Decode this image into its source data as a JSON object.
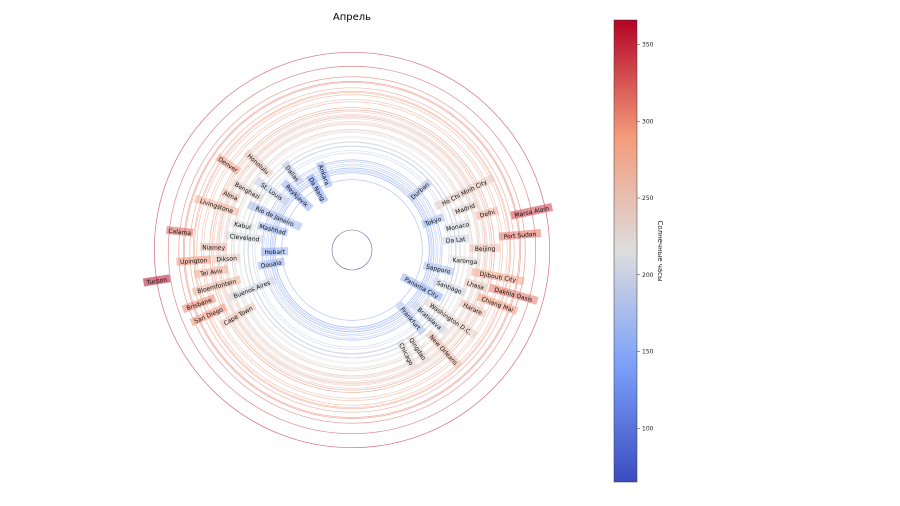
{
  "chart_data": {
    "type": "polar-bubble",
    "title": "Апрель",
    "colorbar": {
      "label": "Солнечные часы",
      "range": [
        65,
        366
      ],
      "ticks": [
        100,
        150,
        200,
        250,
        300,
        350
      ],
      "colormap": [
        "#3b4cc0",
        "#7b9ff9",
        "#dddddd",
        "#f49a7b",
        "#b40426"
      ]
    },
    "theta_unit": "degrees clockwise from top",
    "cities": [
      {
        "name": "Durban",
        "theta": 49,
        "value": 177
      },
      {
        "name": "Ho Chi Minh City",
        "theta": 63,
        "value": 239
      },
      {
        "name": "Tokyo",
        "theta": 69,
        "value": 170
      },
      {
        "name": "Monaco",
        "theta": 70,
        "value": 208
      },
      {
        "name": "Delhi",
        "theta": 75,
        "value": 263
      },
      {
        "name": "Madrid",
        "theta": 76,
        "value": 229
      },
      {
        "name": "Marsa Alam",
        "theta": 78,
        "value": 338
      },
      {
        "name": "Da Lat",
        "theta": 83,
        "value": 201
      },
      {
        "name": "Beijing",
        "theta": 85,
        "value": 251
      },
      {
        "name": "Karonga",
        "theta": 88,
        "value": 217
      },
      {
        "name": "Port Sudan",
        "theta": 88,
        "value": 312
      },
      {
        "name": "Sapporo",
        "theta": 89,
        "value": 174
      },
      {
        "name": "Djibouti City",
        "theta": 90,
        "value": 277
      },
      {
        "name": "Lhasa",
        "theta": 94,
        "value": 243
      },
      {
        "name": "Santiago",
        "theta": 96,
        "value": 201
      },
      {
        "name": "Panama City",
        "theta": 99,
        "value": 158
      },
      {
        "name": "Washington D.C.",
        "theta": 101,
        "value": 229
      },
      {
        "name": "Dakhla Oasis",
        "theta": 104,
        "value": 310
      },
      {
        "name": "Bratislava",
        "theta": 106,
        "value": 200
      },
      {
        "name": "Frankfurt",
        "theta": 108,
        "value": 177
      },
      {
        "name": "Harare",
        "theta": 110,
        "value": 253
      },
      {
        "name": "Chiang Mai",
        "theta": 112,
        "value": 289
      },
      {
        "name": "Qingdao",
        "theta": 115,
        "value": 226
      },
      {
        "name": "New Orleans",
        "theta": 118,
        "value": 255
      },
      {
        "name": "Chicago",
        "theta": 130,
        "value": 224
      },
      {
        "name": "Cape Town",
        "theta": 240,
        "value": 248
      },
      {
        "name": "San Diego",
        "theta": 244,
        "value": 293
      },
      {
        "name": "Brisbane",
        "theta": 249,
        "value": 301
      },
      {
        "name": "Bloemfontein",
        "theta": 252,
        "value": 263
      },
      {
        "name": "Tel Aviv",
        "theta": 255,
        "value": 267
      },
      {
        "name": "Buenos Aires",
        "theta": 256,
        "value": 207
      },
      {
        "name": "Dikson",
        "theta": 257,
        "value": 238
      },
      {
        "name": "Douala",
        "theta": 260,
        "value": 163
      },
      {
        "name": "Tucson",
        "theta": 261,
        "value": 362
      },
      {
        "name": "Upington",
        "theta": 263,
        "value": 295
      },
      {
        "name": "Niamey",
        "theta": 265,
        "value": 260
      },
      {
        "name": "Cleveland",
        "theta": 266,
        "value": 208
      },
      {
        "name": "Hobart",
        "theta": 267,
        "value": 155
      },
      {
        "name": "Kabul",
        "theta": 269,
        "value": 215
      },
      {
        "name": "Livingstone",
        "theta": 270,
        "value": 267
      },
      {
        "name": "Mashhad",
        "theta": 271,
        "value": 163
      },
      {
        "name": "Calama",
        "theta": 276,
        "value": 320
      },
      {
        "name": "Alma",
        "theta": 282,
        "value": 251
      },
      {
        "name": "Benghazi",
        "theta": 283,
        "value": 229
      },
      {
        "name": "St. Louis",
        "theta": 285,
        "value": 193
      },
      {
        "name": "Rio de Janeiro",
        "theta": 286,
        "value": 167
      },
      {
        "name": "Reykjavik",
        "theta": 289,
        "value": 155
      },
      {
        "name": "Denver",
        "theta": 300,
        "value": 281
      },
      {
        "name": "Dallas",
        "theta": 301,
        "value": 189
      },
      {
        "name": "Honolulu",
        "theta": 305,
        "value": 241
      },
      {
        "name": "Da Nang",
        "theta": 306,
        "value": 143
      },
      {
        "name": "Ankara",
        "theta": 311,
        "value": 160
      }
    ]
  }
}
